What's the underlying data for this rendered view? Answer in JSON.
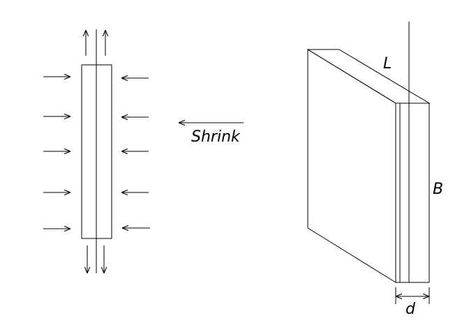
{
  "colors": {
    "line": "#000000",
    "background": "#ffffff"
  },
  "labels": {
    "shrink": "Shrink",
    "length": "L",
    "height": "B",
    "thickness": "d"
  }
}
